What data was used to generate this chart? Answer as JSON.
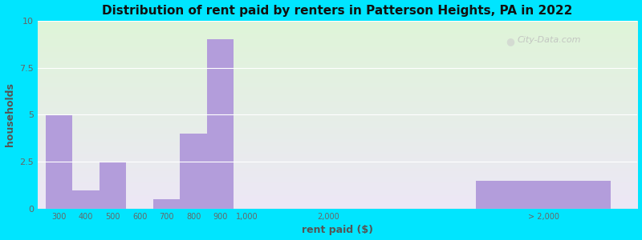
{
  "title": "Distribution of rent paid by renters in Patterson Heights, PA in 2022",
  "xlabel": "rent paid ($)",
  "ylabel": "households",
  "bar_color": "#b39ddb",
  "background_outer": "#00e5ff",
  "yticks": [
    0,
    2.5,
    5,
    7.5,
    10
  ],
  "ylim": [
    0,
    10
  ],
  "categories": [
    "300",
    "400",
    "500",
    "600",
    "700",
    "800",
    "900",
    "1,000",
    "2,000",
    "> 2,000"
  ],
  "values": [
    5,
    1,
    2.5,
    0,
    0.5,
    4,
    9,
    0,
    0,
    1.5
  ],
  "bar_left_edges": [
    0,
    1,
    2,
    3,
    4,
    5,
    6,
    7,
    10,
    16
  ],
  "bar_widths": [
    1,
    1,
    1,
    1,
    1,
    1,
    1,
    1,
    1,
    5
  ],
  "tick_positions": [
    0.5,
    1.5,
    2.5,
    3.5,
    4.5,
    5.5,
    6.5,
    7.5,
    10.5,
    18.5
  ],
  "xlim": [
    -0.3,
    22
  ],
  "watermark": "City-Data.com"
}
